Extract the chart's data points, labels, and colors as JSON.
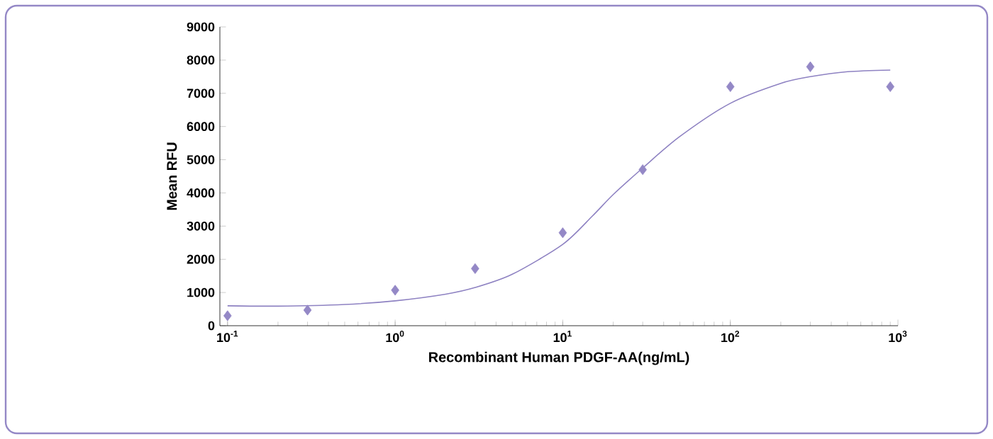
{
  "chart_data": {
    "type": "scatter",
    "xlabel": "Recombinant Human PDGF-AA(ng/mL)",
    "ylabel": "Mean RFU",
    "log": "x",
    "marker": "diamond",
    "grid": false,
    "xlim": [
      0.09,
      1000
    ],
    "ylim": [
      0,
      9000
    ],
    "xticks": [
      {
        "value": 0.1,
        "label": "10$^{-1}$"
      },
      {
        "value": 1,
        "label": "10$^{0}$"
      },
      {
        "value": 10,
        "label": "10$^{1}$"
      },
      {
        "value": 100,
        "label": "10$^{2}$"
      },
      {
        "value": 1000,
        "label": "10$^{3}$"
      }
    ],
    "yticks": [
      0,
      1000,
      2000,
      3000,
      4000,
      5000,
      6000,
      7000,
      8000,
      9000
    ],
    "series": [
      {
        "color": "#9488c6",
        "x": [
          0.1,
          0.3,
          1,
          3,
          10,
          30,
          100,
          300,
          900
        ],
        "values": [
          300,
          470,
          1070,
          1720,
          2800,
          4700,
          7200,
          7800,
          7200
        ]
      },
      {
        "type": "line",
        "marker": "none",
        "color": "#8e82c2",
        "x": [
          0.1,
          0.2,
          0.5,
          1,
          2,
          3,
          5,
          10,
          15,
          20,
          30,
          50,
          100,
          200,
          300,
          500,
          900
        ],
        "values": [
          600,
          590,
          640,
          750,
          950,
          1150,
          1550,
          2450,
          3300,
          3950,
          4750,
          5700,
          6700,
          7300,
          7500,
          7650,
          7700
        ]
      }
    ]
  }
}
